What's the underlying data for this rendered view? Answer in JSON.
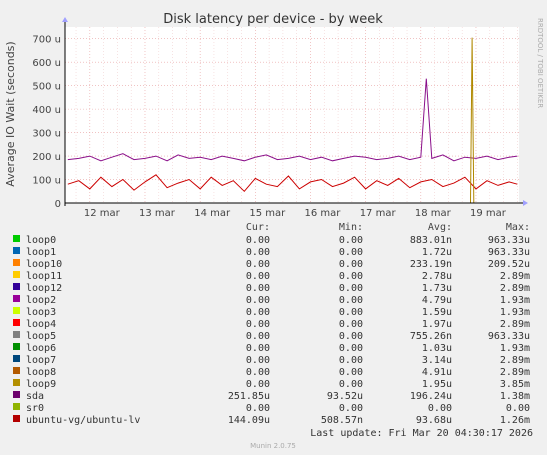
{
  "chart_data": {
    "type": "line",
    "title": "Disk latency per device - by week",
    "ylabel": "Average IO Wait (seconds)",
    "watermark": "RRDTOOL / TOBI OETIKER",
    "ylim": [
      0,
      750
    ],
    "yticks": [
      {
        "v": 0,
        "label": "0"
      },
      {
        "v": 100,
        "label": "100 u"
      },
      {
        "v": 200,
        "label": "200 u"
      },
      {
        "v": 300,
        "label": "300 u"
      },
      {
        "v": 400,
        "label": "400 u"
      },
      {
        "v": 500,
        "label": "500 u"
      },
      {
        "v": 600,
        "label": "600 u"
      },
      {
        "v": 700,
        "label": "700 u"
      }
    ],
    "xlim": [
      11.55,
      19.78
    ],
    "xticks": [
      {
        "v": 12,
        "label": "12 mar"
      },
      {
        "v": 13,
        "label": "13 mar"
      },
      {
        "v": 14,
        "label": "14 mar"
      },
      {
        "v": 15,
        "label": "15 mar"
      },
      {
        "v": 16,
        "label": "16 mar"
      },
      {
        "v": 17,
        "label": "17 mar"
      },
      {
        "v": 18,
        "label": "18 mar"
      },
      {
        "v": 19,
        "label": "19 mar"
      }
    ],
    "series": [
      {
        "name": "sda",
        "color": "#8a0f8a",
        "points": [
          [
            11.6,
            185
          ],
          [
            11.8,
            190
          ],
          [
            12.0,
            200
          ],
          [
            12.2,
            180
          ],
          [
            12.4,
            195
          ],
          [
            12.6,
            210
          ],
          [
            12.8,
            185
          ],
          [
            13.0,
            190
          ],
          [
            13.2,
            200
          ],
          [
            13.4,
            180
          ],
          [
            13.6,
            205
          ],
          [
            13.8,
            190
          ],
          [
            14.0,
            195
          ],
          [
            14.2,
            185
          ],
          [
            14.4,
            200
          ],
          [
            14.6,
            190
          ],
          [
            14.8,
            180
          ],
          [
            15.0,
            195
          ],
          [
            15.2,
            205
          ],
          [
            15.4,
            185
          ],
          [
            15.6,
            190
          ],
          [
            15.8,
            200
          ],
          [
            16.0,
            185
          ],
          [
            16.2,
            195
          ],
          [
            16.4,
            180
          ],
          [
            16.6,
            190
          ],
          [
            16.8,
            200
          ],
          [
            17.0,
            195
          ],
          [
            17.2,
            185
          ],
          [
            17.4,
            190
          ],
          [
            17.6,
            200
          ],
          [
            17.8,
            185
          ],
          [
            18.0,
            195
          ],
          [
            18.1,
            530
          ],
          [
            18.2,
            190
          ],
          [
            18.4,
            205
          ],
          [
            18.6,
            180
          ],
          [
            18.8,
            195
          ],
          [
            19.0,
            190
          ],
          [
            19.2,
            200
          ],
          [
            19.4,
            185
          ],
          [
            19.6,
            195
          ],
          [
            19.75,
            200
          ]
        ]
      },
      {
        "name": "ubuntu-vg/ubuntu-lv",
        "color": "#cc0000",
        "points": [
          [
            11.6,
            80
          ],
          [
            11.8,
            95
          ],
          [
            12.0,
            60
          ],
          [
            12.2,
            110
          ],
          [
            12.4,
            70
          ],
          [
            12.6,
            100
          ],
          [
            12.8,
            55
          ],
          [
            13.0,
            90
          ],
          [
            13.2,
            120
          ],
          [
            13.4,
            65
          ],
          [
            13.6,
            85
          ],
          [
            13.8,
            100
          ],
          [
            14.0,
            60
          ],
          [
            14.2,
            110
          ],
          [
            14.4,
            75
          ],
          [
            14.6,
            95
          ],
          [
            14.8,
            50
          ],
          [
            15.0,
            105
          ],
          [
            15.2,
            80
          ],
          [
            15.4,
            70
          ],
          [
            15.6,
            115
          ],
          [
            15.8,
            60
          ],
          [
            16.0,
            90
          ],
          [
            16.2,
            100
          ],
          [
            16.4,
            70
          ],
          [
            16.6,
            85
          ],
          [
            16.8,
            110
          ],
          [
            17.0,
            60
          ],
          [
            17.2,
            95
          ],
          [
            17.4,
            75
          ],
          [
            17.6,
            105
          ],
          [
            17.8,
            65
          ],
          [
            18.0,
            90
          ],
          [
            18.2,
            100
          ],
          [
            18.4,
            70
          ],
          [
            18.6,
            85
          ],
          [
            18.8,
            110
          ],
          [
            19.0,
            60
          ],
          [
            19.2,
            95
          ],
          [
            19.4,
            75
          ],
          [
            19.6,
            90
          ],
          [
            19.75,
            80
          ]
        ]
      },
      {
        "name": "loop9",
        "color": "#b08800",
        "points": [
          [
            11.6,
            0
          ],
          [
            18.9,
            0
          ],
          [
            18.93,
            705
          ],
          [
            18.96,
            0
          ],
          [
            19.75,
            0
          ]
        ]
      }
    ]
  },
  "legend": {
    "headers": {
      "cur": "Cur:",
      "min": "Min:",
      "avg": "Avg:",
      "max": "Max:"
    },
    "rows": [
      {
        "name": "loop0",
        "color": "#00cc00",
        "cur": "0.00",
        "min": "0.00",
        "avg": "883.01n",
        "max": "963.33u"
      },
      {
        "name": "loop1",
        "color": "#0066b3",
        "cur": "0.00",
        "min": "0.00",
        "avg": "1.72u",
        "max": "963.33u"
      },
      {
        "name": "loop10",
        "color": "#ff8000",
        "cur": "0.00",
        "min": "0.00",
        "avg": "233.19n",
        "max": "209.52u"
      },
      {
        "name": "loop11",
        "color": "#ffcc00",
        "cur": "0.00",
        "min": "0.00",
        "avg": "2.78u",
        "max": "2.89m"
      },
      {
        "name": "loop12",
        "color": "#330099",
        "cur": "0.00",
        "min": "0.00",
        "avg": "1.73u",
        "max": "2.89m"
      },
      {
        "name": "loop2",
        "color": "#990099",
        "cur": "0.00",
        "min": "0.00",
        "avg": "4.79u",
        "max": "1.93m"
      },
      {
        "name": "loop3",
        "color": "#ccff00",
        "cur": "0.00",
        "min": "0.00",
        "avg": "1.59u",
        "max": "1.93m"
      },
      {
        "name": "loop4",
        "color": "#ff0000",
        "cur": "0.00",
        "min": "0.00",
        "avg": "1.97u",
        "max": "2.89m"
      },
      {
        "name": "loop5",
        "color": "#808080",
        "cur": "0.00",
        "min": "0.00",
        "avg": "755.26n",
        "max": "963.33u"
      },
      {
        "name": "loop6",
        "color": "#008f00",
        "cur": "0.00",
        "min": "0.00",
        "avg": "1.03u",
        "max": "1.93m"
      },
      {
        "name": "loop7",
        "color": "#00487d",
        "cur": "0.00",
        "min": "0.00",
        "avg": "3.14u",
        "max": "2.89m"
      },
      {
        "name": "loop8",
        "color": "#b35a00",
        "cur": "0.00",
        "min": "0.00",
        "avg": "4.91u",
        "max": "2.89m"
      },
      {
        "name": "loop9",
        "color": "#b38f00",
        "cur": "0.00",
        "min": "0.00",
        "avg": "1.95u",
        "max": "3.85m"
      },
      {
        "name": "sda",
        "color": "#6b006b",
        "cur": "251.85u",
        "min": "93.52u",
        "avg": "196.24u",
        "max": "1.38m"
      },
      {
        "name": "sr0",
        "color": "#8fb300",
        "cur": "0.00",
        "min": "0.00",
        "avg": "0.00",
        "max": "0.00"
      },
      {
        "name": "ubuntu-vg/ubuntu-lv",
        "color": "#b30000",
        "cur": "144.09u",
        "min": "508.57n",
        "avg": "93.68u",
        "max": "1.26m"
      }
    ]
  },
  "last_update": "Last update: Fri Mar 20 04:30:17 2026",
  "footer": "Munin 2.0.75"
}
